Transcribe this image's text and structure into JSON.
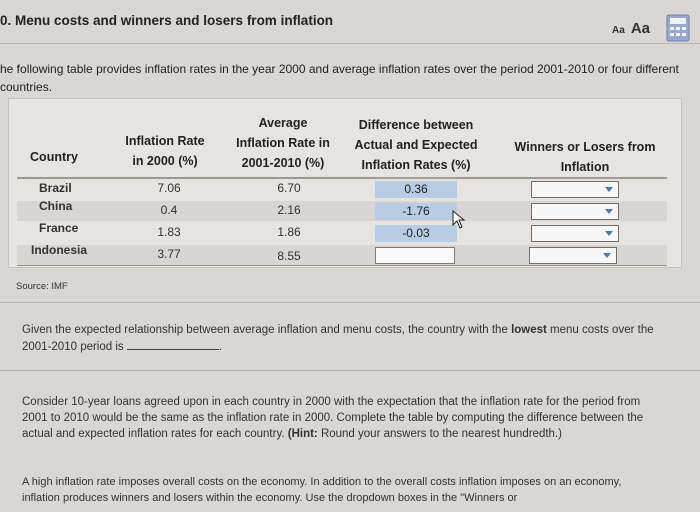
{
  "header": {
    "title": "0. Menu costs and winners and losers from inflation",
    "font_small": "Aa",
    "font_large": "Aa",
    "calculator_icon": "calculator-icon"
  },
  "intro": "he following table provides inflation rates in the year 2000 and average inflation rates over the period 2001-2010 or four different countries.",
  "table": {
    "headers": {
      "country": "Country",
      "rate2000_l1": "Inflation Rate",
      "rate2000_l2": "in 2000 (%)",
      "avg_l1": "Average",
      "avg_l2": "Inflation Rate in",
      "avg_l3": "2001-2010 (%)",
      "diff_l1": "Difference between",
      "diff_l2": "Actual and Expected",
      "diff_l3": "Inflation Rates (%)",
      "wl_l1": "Winners or Losers from",
      "wl_l2": "Inflation"
    },
    "rows": [
      {
        "country": "Brazil",
        "rate2000": "7.06",
        "avg": "6.70",
        "diff": "0.36",
        "winners": ""
      },
      {
        "country": "China",
        "rate2000": "0.4",
        "avg": "2.16",
        "diff": "-1.76",
        "winners": ""
      },
      {
        "country": "France",
        "rate2000": "1.83",
        "avg": "1.86",
        "diff": "-0.03",
        "winners": ""
      },
      {
        "country": "Indonesia",
        "rate2000": "3.77",
        "avg": "8.55",
        "diff": "",
        "winners": ""
      }
    ],
    "colors": {
      "answer_fill": "#b8cde3",
      "stripe": "#d8d5d2"
    }
  },
  "source": "Source: IMF",
  "q1": {
    "part1": "Given the expected relationship between average inflation and menu costs, the country with the ",
    "bold": "lowest",
    "part2": " menu costs over the 2001-2010 period is",
    "answer": "",
    "end": "."
  },
  "q2": {
    "text": "Consider 10-year loans agreed upon in each country in 2000 with the expectation that the inflation rate for the period from 2001 to 2010 would be the same as the inflation rate in 2000. Complete the table by computing the difference between the actual and expected inflation rates for each country. ",
    "hint_label": "(Hint:",
    "hint_text": " Round your answers to the nearest hundredth.)"
  },
  "q3": {
    "text": "A high inflation rate imposes overall costs on the economy. In addition to the overall costs inflation imposes on an economy, inflation produces winners and losers within the economy. Use the dropdown boxes in the \"Winners or"
  }
}
